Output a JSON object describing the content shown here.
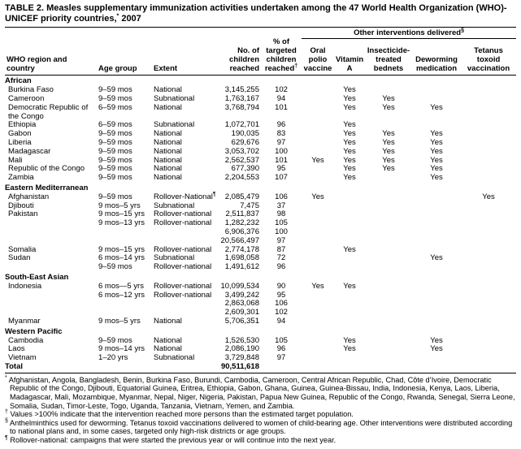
{
  "header": {
    "title": "TABLE 2. Measles supplementary immunization activities undertaken among the 47 World Health Organization (WHO)-UNICEF priority countries,",
    "title_mark": "*",
    "title_end": " 2007"
  },
  "table": {
    "group_header": {
      "text": "Other interventions delivered",
      "mark": "§"
    },
    "columns": [
      {
        "text": "WHO region and country"
      },
      {
        "text": "Age group"
      },
      {
        "text": "Extent"
      },
      {
        "text": "No. of children reached"
      },
      {
        "text": "% of targeted children reached",
        "mark": "†"
      },
      {
        "text": "Oral polio vaccine"
      },
      {
        "text": "Vitamin A"
      },
      {
        "text": "Insecticide-treated bednets"
      },
      {
        "text": "Deworming medication"
      },
      {
        "text": "Tetanus toxoid vaccination"
      }
    ],
    "sections": [
      {
        "name": "African",
        "rows": [
          [
            "Burkina Faso",
            "9–59 mos",
            "National",
            "3,145,255",
            "102",
            null,
            "Yes",
            null,
            null,
            null
          ],
          [
            "Cameroon",
            "9–59 mos",
            "Subnational",
            "1,763,167",
            "94",
            null,
            "Yes",
            "Yes",
            null,
            null
          ],
          [
            "Democratic Republic of the Congo",
            "6–59 mos",
            "National",
            "3,768,794",
            "101",
            null,
            "Yes",
            "Yes",
            "Yes",
            null
          ],
          [
            "Ethiopia",
            "6–59 mos",
            "Subnational",
            "1,072,701",
            "96",
            null,
            "Yes",
            null,
            null,
            null
          ],
          [
            "Gabon",
            "9–59 mos",
            "National",
            "190,035",
            "83",
            null,
            "Yes",
            "Yes",
            "Yes",
            null
          ],
          [
            "Liberia",
            "9–59 mos",
            "National",
            "629,676",
            "97",
            null,
            "Yes",
            "Yes",
            "Yes",
            null
          ],
          [
            "Madagascar",
            "9–59 mos",
            "National",
            "3,053,702",
            "100",
            null,
            "Yes",
            "Yes",
            "Yes",
            null
          ],
          [
            "Mali",
            "9–59 mos",
            "National",
            "2,562,537",
            "101",
            "Yes",
            "Yes",
            "Yes",
            "Yes",
            null
          ],
          [
            "Republic of the Congo",
            "9–59 mos",
            "National",
            "677,390",
            "95",
            null,
            "Yes",
            "Yes",
            "Yes",
            null
          ],
          [
            "Zambia",
            "9–59 mos",
            "National",
            "2,204,553",
            "107",
            null,
            "Yes",
            null,
            "Yes",
            null
          ]
        ]
      },
      {
        "name": "Eastern Mediterranean",
        "rows": [
          [
            "Afghanistan",
            "9–59 mos",
            {
              "text": "Rollover-National",
              "mark": "¶"
            },
            "2,085,479",
            "106",
            "Yes",
            null,
            null,
            null,
            "Yes"
          ],
          [
            "Djibouti",
            "9 mos–5 yrs",
            "Subnational",
            "7,475",
            "37",
            null,
            null,
            null,
            null,
            null
          ],
          [
            "Pakistan",
            "9 mos–15 yrs",
            "Rollover-national",
            "2,511,837",
            "98",
            null,
            null,
            null,
            null,
            null
          ],
          [
            null,
            "9 mos–13 yrs",
            "Rollover-national",
            "1,282,232",
            "105",
            null,
            null,
            null,
            null,
            null
          ],
          [
            null,
            null,
            null,
            "6,906,376",
            "100",
            null,
            null,
            null,
            null,
            null
          ],
          [
            null,
            null,
            null,
            "20,566,497",
            "97",
            null,
            null,
            null,
            null,
            null
          ],
          [
            "Somalia",
            "9 mos–15 yrs",
            "Rollover-national",
            "2,774,178",
            "87",
            null,
            "Yes",
            null,
            null,
            null
          ],
          [
            "Sudan",
            "6 mos–14 yrs",
            "Subnational",
            "1,698,058",
            "72",
            null,
            null,
            null,
            "Yes",
            null
          ],
          [
            null,
            "9–59 mos",
            "Rollover-national",
            "1,491,612",
            "96",
            null,
            null,
            null,
            null,
            null
          ]
        ]
      },
      {
        "name": "South-East Asian",
        "rows": [
          [
            "Indonesia",
            "6 mos—5 yrs",
            "Rollover-national",
            "10,099,534",
            "90",
            "Yes",
            "Yes",
            null,
            null,
            null
          ],
          [
            null,
            "6 mos–12 yrs",
            "Rollover-national",
            "3,499,242",
            "95",
            null,
            null,
            null,
            null,
            null
          ],
          [
            null,
            null,
            null,
            "2,863,068",
            "106",
            null,
            null,
            null,
            null,
            null
          ],
          [
            null,
            null,
            null,
            "2,609,301",
            "102",
            null,
            null,
            null,
            null,
            null
          ],
          [
            "Myanmar",
            "9 mos–5 yrs",
            "National",
            "5,706,351",
            "94",
            null,
            null,
            null,
            null,
            null
          ]
        ]
      },
      {
        "name": "Western Pacific",
        "rows": [
          [
            "Cambodia",
            "9–59 mos",
            "National",
            "1,526,530",
            "105",
            null,
            "Yes",
            null,
            "Yes",
            null
          ],
          [
            "Laos",
            "9 mos–14 yrs",
            "National",
            "2,086,190",
            "96",
            null,
            "Yes",
            null,
            "Yes",
            null
          ],
          [
            "Vietnam",
            "1–20 yrs",
            "Subnational",
            "3,729,848",
            "97",
            null,
            null,
            null,
            null,
            null
          ]
        ]
      }
    ],
    "total": {
      "label": "Total",
      "value": "90,511,618"
    }
  },
  "footnotes": [
    {
      "mark": "*",
      "text": " Afghanistan, Angola, Bangladesh, Benin, Burkina Faso, Burundi, Cambodia, Cameroon, Central African Republic, Chad, Côte d’Ivoire, Democratic Republic of the Congo, Djibouti, Equatorial Guinea, Eritrea, Ethiopia, Gabon, Ghana, Guinea, Guinea-Bissau, India, Indonesia, Kenya, Laos, Liberia, Madagascar, Mali, Mozambique, Myanmar, Nepal, Niger, Nigeria, Pakistan, Papua New Guinea, Republic of the Congo, Rwanda, Senegal, Sierra Leone, Somalia, Sudan, Timor-Leste, Togo, Uganda, Tanzania, Vietnam, Yemen, and Zambia."
    },
    {
      "mark": "†",
      "text": " Values >100% indicate that the intervention reached more persons than the estimated target population."
    },
    {
      "mark": "§",
      "text": " Anthelminthics used for deworming. Tetanus toxoid vaccinations delivered to women of child-bearing age. Other interventions were distributed according to national plans and, in some cases, targeted only high-risk districts or age groups."
    },
    {
      "mark": "¶",
      "text": " Rollover-national: campaigns that were started the previous year or will continue into the next year."
    }
  ]
}
